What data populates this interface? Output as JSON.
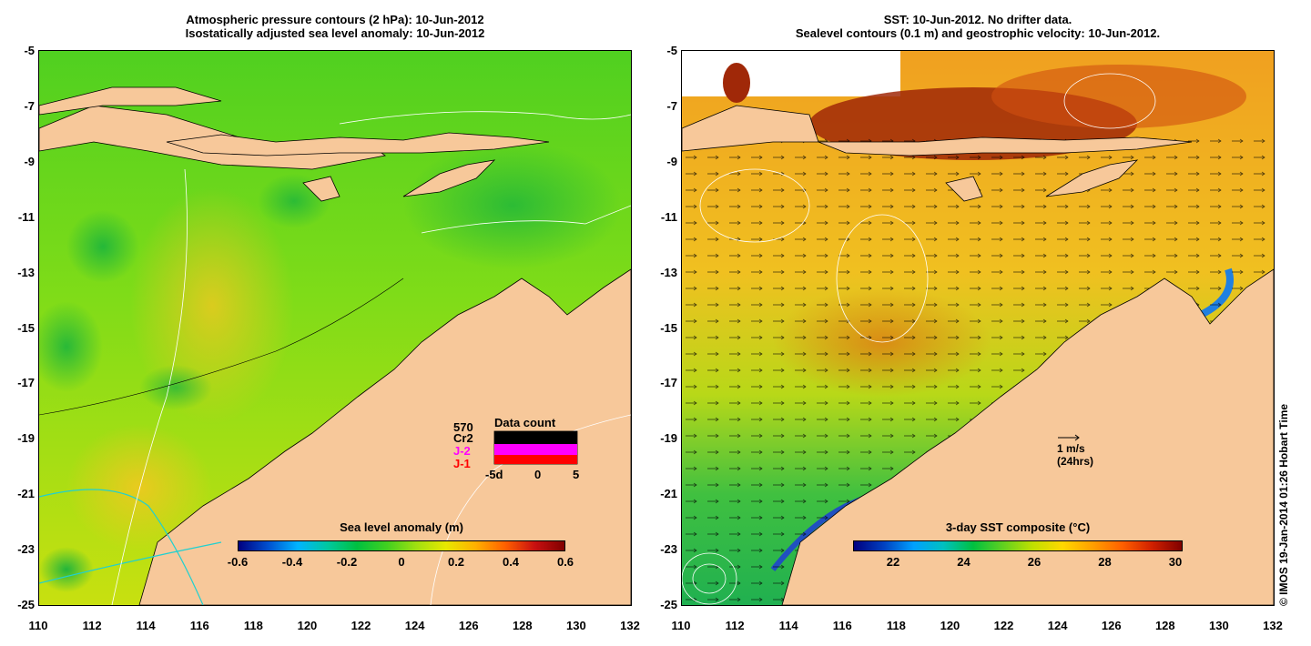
{
  "left_panel": {
    "title_line1": "Atmospheric pressure contours (2 hPa): 10-Jun-2012",
    "title_line2": "Isostatically adjusted sea level anomaly: 10-Jun-2012",
    "colorbar_label": "Sea level anomaly (m)",
    "colorbar_ticks": [
      "-0.6",
      "-0.4",
      "-0.2",
      "0",
      "0.2",
      "0.4",
      "0.6"
    ],
    "data_count": {
      "title": "Data count",
      "max_label": "570",
      "series": [
        {
          "name": "Cr2",
          "color": "#000000"
        },
        {
          "name": "J-2",
          "color": "#ff00ff"
        },
        {
          "name": "J-1",
          "color": "#ff0000"
        }
      ],
      "axis_ticks": [
        "-5d",
        "0",
        "5"
      ]
    }
  },
  "right_panel": {
    "title_line1": "SST: 10-Jun-2012. No drifter data.",
    "title_line2": "Sealevel contours (0.1 m) and geostrophic velocity: 10-Jun-2012.",
    "colorbar_label": "3-day SST composite (°C)",
    "colorbar_ticks": [
      "22",
      "24",
      "26",
      "28",
      "30"
    ],
    "velocity_scale": {
      "speed": "1 m/s",
      "period": "(24hrs)"
    }
  },
  "axes": {
    "y_ticks": [
      "-5",
      "-7",
      "-9",
      "-11",
      "-13",
      "-15",
      "-17",
      "-19",
      "-21",
      "-23",
      "-25"
    ],
    "x_ticks": [
      "110",
      "112",
      "114",
      "116",
      "118",
      "120",
      "122",
      "124",
      "126",
      "128",
      "130",
      "132"
    ]
  },
  "copyright": "© IMOS 19-Jan-2014 01:26 Hobart Time",
  "colors": {
    "land": "#f7c89a",
    "sla_ramp": [
      "#000080",
      "#0050d0",
      "#00b4ff",
      "#00c8a0",
      "#00c040",
      "#40d020",
      "#a0e010",
      "#e8e800",
      "#ffb000",
      "#ff6000",
      "#c81010",
      "#800000"
    ],
    "sst_ramp": [
      "#000080",
      "#0040c0",
      "#00a0ff",
      "#00c0c0",
      "#00c040",
      "#60d020",
      "#c0e000",
      "#ffd800",
      "#ffa000",
      "#ff6000",
      "#d02000",
      "#800000"
    ]
  }
}
